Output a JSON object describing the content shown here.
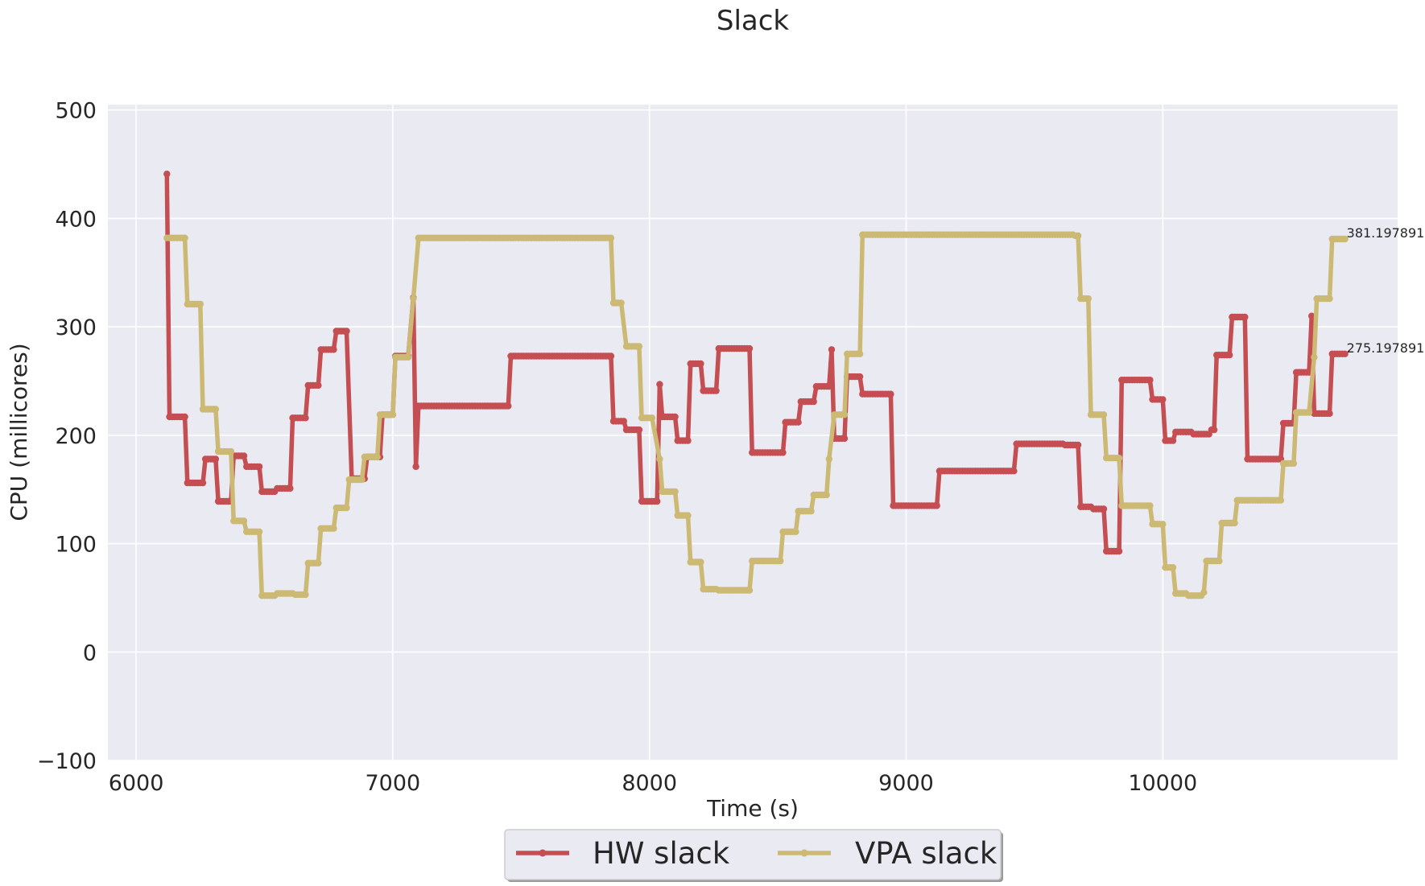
{
  "chart_data": {
    "type": "line",
    "title": "Slack",
    "xlabel": "Time (s)",
    "ylabel": "CPU (millicores)",
    "xlim": [
      5890,
      10915
    ],
    "ylim": [
      -100,
      505
    ],
    "xticks": [
      6000,
      7000,
      8000,
      9000,
      10000
    ],
    "xtick_labels": [
      "6000",
      "7000",
      "8000",
      "9000",
      "10000"
    ],
    "yticks": [
      -100,
      0,
      100,
      200,
      300,
      400,
      500
    ],
    "ytick_labels": [
      "−100",
      "0",
      "100",
      "200",
      "300",
      "400",
      "500"
    ],
    "grid": true,
    "legend_position": "bottom-center",
    "series": [
      {
        "name": "HW slack",
        "color": "#c44e52",
        "end_label": "275.197891",
        "points": [
          [
            6120,
            441
          ],
          [
            6130,
            217
          ],
          [
            6190,
            217
          ],
          [
            6200,
            156
          ],
          [
            6260,
            156
          ],
          [
            6270,
            178
          ],
          [
            6310,
            178
          ],
          [
            6320,
            139
          ],
          [
            6370,
            139
          ],
          [
            6380,
            181
          ],
          [
            6420,
            181
          ],
          [
            6430,
            171
          ],
          [
            6480,
            171
          ],
          [
            6490,
            148
          ],
          [
            6540,
            148
          ],
          [
            6550,
            151
          ],
          [
            6600,
            151
          ],
          [
            6610,
            216
          ],
          [
            6660,
            216
          ],
          [
            6670,
            246
          ],
          [
            6710,
            246
          ],
          [
            6720,
            279
          ],
          [
            6770,
            279
          ],
          [
            6780,
            296
          ],
          [
            6820,
            296
          ],
          [
            6840,
            160
          ],
          [
            6890,
            160
          ],
          [
            6900,
            180
          ],
          [
            6950,
            180
          ],
          [
            6960,
            219
          ],
          [
            7000,
            219
          ],
          [
            7010,
            273
          ],
          [
            7060,
            273
          ],
          [
            7080,
            327
          ],
          [
            7090,
            171
          ],
          [
            7100,
            227
          ],
          [
            7450,
            227
          ],
          [
            7460,
            273
          ],
          [
            7850,
            273
          ],
          [
            7860,
            213
          ],
          [
            7900,
            213
          ],
          [
            7910,
            205
          ],
          [
            7960,
            205
          ],
          [
            7970,
            139
          ],
          [
            8030,
            139
          ],
          [
            8040,
            247
          ],
          [
            8050,
            217
          ],
          [
            8100,
            217
          ],
          [
            8110,
            195
          ],
          [
            8150,
            195
          ],
          [
            8160,
            266
          ],
          [
            8200,
            266
          ],
          [
            8210,
            241
          ],
          [
            8260,
            241
          ],
          [
            8270,
            280
          ],
          [
            8390,
            280
          ],
          [
            8400,
            184
          ],
          [
            8520,
            184
          ],
          [
            8530,
            212
          ],
          [
            8580,
            212
          ],
          [
            8590,
            231
          ],
          [
            8640,
            231
          ],
          [
            8650,
            245
          ],
          [
            8700,
            245
          ],
          [
            8710,
            279
          ],
          [
            8720,
            197
          ],
          [
            8760,
            197
          ],
          [
            8770,
            254
          ],
          [
            8820,
            254
          ],
          [
            8830,
            238
          ],
          [
            8940,
            238
          ],
          [
            8950,
            135
          ],
          [
            9120,
            135
          ],
          [
            9130,
            167
          ],
          [
            9420,
            167
          ],
          [
            9430,
            192
          ],
          [
            9610,
            192
          ],
          [
            9620,
            191
          ],
          [
            9670,
            191
          ],
          [
            9680,
            134
          ],
          [
            9720,
            134
          ],
          [
            9730,
            132
          ],
          [
            9770,
            132
          ],
          [
            9780,
            93
          ],
          [
            9830,
            93
          ],
          [
            9840,
            251
          ],
          [
            9950,
            251
          ],
          [
            9960,
            233
          ],
          [
            10000,
            233
          ],
          [
            10010,
            195
          ],
          [
            10040,
            195
          ],
          [
            10050,
            203
          ],
          [
            10110,
            203
          ],
          [
            10120,
            201
          ],
          [
            10180,
            201
          ],
          [
            10190,
            205
          ],
          [
            10200,
            205
          ],
          [
            10210,
            274
          ],
          [
            10260,
            274
          ],
          [
            10270,
            309
          ],
          [
            10320,
            309
          ],
          [
            10330,
            178
          ],
          [
            10460,
            178
          ],
          [
            10470,
            211
          ],
          [
            10510,
            211
          ],
          [
            10520,
            258
          ],
          [
            10570,
            258
          ],
          [
            10580,
            310
          ],
          [
            10590,
            220
          ],
          [
            10650,
            220
          ],
          [
            10660,
            275
          ],
          [
            10710,
            275
          ]
        ]
      },
      {
        "name": "VPA slack",
        "color": "#ccb974",
        "end_label": "381.197891",
        "points": [
          [
            6120,
            382
          ],
          [
            6190,
            382
          ],
          [
            6200,
            321
          ],
          [
            6250,
            321
          ],
          [
            6260,
            224
          ],
          [
            6310,
            224
          ],
          [
            6320,
            185
          ],
          [
            6370,
            185
          ],
          [
            6380,
            121
          ],
          [
            6420,
            121
          ],
          [
            6430,
            111
          ],
          [
            6480,
            111
          ],
          [
            6490,
            52
          ],
          [
            6540,
            52
          ],
          [
            6550,
            54
          ],
          [
            6610,
            54
          ],
          [
            6620,
            53
          ],
          [
            6660,
            53
          ],
          [
            6670,
            82
          ],
          [
            6710,
            82
          ],
          [
            6720,
            114
          ],
          [
            6770,
            114
          ],
          [
            6780,
            133
          ],
          [
            6820,
            133
          ],
          [
            6830,
            159
          ],
          [
            6880,
            159
          ],
          [
            6890,
            180
          ],
          [
            6940,
            180
          ],
          [
            6950,
            219
          ],
          [
            7000,
            219
          ],
          [
            7010,
            272
          ],
          [
            7060,
            272
          ],
          [
            7080,
            326
          ],
          [
            7100,
            382
          ],
          [
            7850,
            382
          ],
          [
            7860,
            322
          ],
          [
            7890,
            322
          ],
          [
            7910,
            282
          ],
          [
            7960,
            282
          ],
          [
            7970,
            216
          ],
          [
            8010,
            216
          ],
          [
            8040,
            178
          ],
          [
            8050,
            148
          ],
          [
            8100,
            148
          ],
          [
            8110,
            126
          ],
          [
            8150,
            126
          ],
          [
            8160,
            83
          ],
          [
            8200,
            83
          ],
          [
            8210,
            58
          ],
          [
            8260,
            58
          ],
          [
            8270,
            57
          ],
          [
            8390,
            57
          ],
          [
            8400,
            84
          ],
          [
            8510,
            84
          ],
          [
            8520,
            111
          ],
          [
            8570,
            111
          ],
          [
            8580,
            130
          ],
          [
            8630,
            130
          ],
          [
            8640,
            145
          ],
          [
            8690,
            145
          ],
          [
            8700,
            178
          ],
          [
            8720,
            219
          ],
          [
            8760,
            219
          ],
          [
            8770,
            275
          ],
          [
            8820,
            275
          ],
          [
            8830,
            385
          ],
          [
            9650,
            385
          ],
          [
            9660,
            384
          ],
          [
            9670,
            384
          ],
          [
            9680,
            326
          ],
          [
            9710,
            326
          ],
          [
            9720,
            219
          ],
          [
            9770,
            219
          ],
          [
            9780,
            179
          ],
          [
            9830,
            179
          ],
          [
            9840,
            135
          ],
          [
            9950,
            135
          ],
          [
            9960,
            118
          ],
          [
            10000,
            118
          ],
          [
            10010,
            78
          ],
          [
            10040,
            78
          ],
          [
            10050,
            54
          ],
          [
            10090,
            54
          ],
          [
            10100,
            52
          ],
          [
            10150,
            52
          ],
          [
            10160,
            55
          ],
          [
            10170,
            84
          ],
          [
            10220,
            84
          ],
          [
            10230,
            119
          ],
          [
            10280,
            119
          ],
          [
            10290,
            140
          ],
          [
            10460,
            140
          ],
          [
            10470,
            174
          ],
          [
            10510,
            174
          ],
          [
            10520,
            221
          ],
          [
            10570,
            221
          ],
          [
            10590,
            272
          ],
          [
            10600,
            326
          ],
          [
            10650,
            326
          ],
          [
            10660,
            381
          ],
          [
            10710,
            381
          ]
        ]
      }
    ]
  }
}
